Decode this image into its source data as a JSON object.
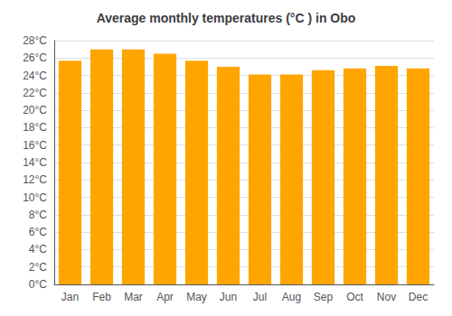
{
  "chart_data": {
    "type": "bar",
    "title": "Average monthly temperatures (°C ) in Obo",
    "categories": [
      "Jan",
      "Feb",
      "Mar",
      "Apr",
      "May",
      "Jun",
      "Jul",
      "Aug",
      "Sep",
      "Oct",
      "Nov",
      "Dec"
    ],
    "values": [
      25.7,
      27.0,
      27.0,
      26.5,
      25.7,
      25.0,
      24.1,
      24.1,
      24.6,
      24.8,
      25.1,
      24.8
    ],
    "color": "#FFA500",
    "ylim": [
      0,
      28
    ],
    "yticks": [
      {
        "value": 0,
        "label": "0°C"
      },
      {
        "value": 2,
        "label": "2°C"
      },
      {
        "value": 4,
        "label": "4°C"
      },
      {
        "value": 6,
        "label": "6°C"
      },
      {
        "value": 8,
        "label": "8°C"
      },
      {
        "value": 10,
        "label": "10°C"
      },
      {
        "value": 12,
        "label": "12°C"
      },
      {
        "value": 14,
        "label": "14°C"
      },
      {
        "value": 16,
        "label": "16°C"
      },
      {
        "value": 18,
        "label": "18°C"
      },
      {
        "value": 20,
        "label": "20°C"
      },
      {
        "value": 22,
        "label": "22°C"
      },
      {
        "value": 24,
        "label": "24°C"
      },
      {
        "value": 26,
        "label": "26°C"
      },
      {
        "value": 28,
        "label": "28°C"
      }
    ],
    "grid": true
  }
}
